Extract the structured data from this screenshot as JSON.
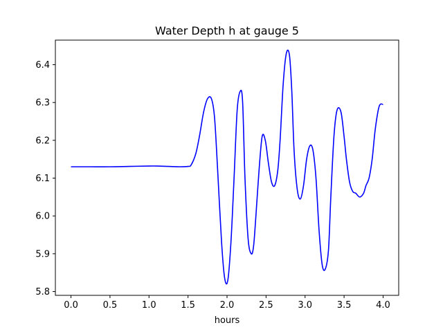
{
  "chart_data": {
    "type": "line",
    "title": "Water Depth h at gauge 5",
    "xlabel": "hours",
    "ylabel": "",
    "xlim": [
      -0.2,
      4.2
    ],
    "ylim": [
      5.79,
      6.465
    ],
    "grid": false,
    "legend": "none",
    "x_ticks": [
      "0.0",
      "0.5",
      "1.0",
      "1.5",
      "2.0",
      "2.5",
      "3.0",
      "3.5",
      "4.0"
    ],
    "y_ticks": [
      "5.8",
      "5.9",
      "6.0",
      "6.1",
      "6.2",
      "6.3",
      "6.4"
    ],
    "series": [
      {
        "color": "#0000ff",
        "x": [
          0.0,
          0.25,
          0.5,
          0.75,
          1.0,
          1.1,
          1.25,
          1.4,
          1.5,
          1.54,
          1.6,
          1.65,
          1.7,
          1.75,
          1.8,
          1.84,
          1.88,
          1.93,
          1.97,
          2.01,
          2.05,
          2.09,
          2.13,
          2.17,
          2.2,
          2.23,
          2.27,
          2.31,
          2.34,
          2.37,
          2.41,
          2.45,
          2.49,
          2.53,
          2.57,
          2.61,
          2.65,
          2.68,
          2.72,
          2.76,
          2.8,
          2.83,
          2.86,
          2.9,
          2.94,
          2.98,
          3.02,
          3.06,
          3.1,
          3.14,
          3.18,
          3.22,
          3.26,
          3.3,
          3.33,
          3.37,
          3.41,
          3.46,
          3.5,
          3.53,
          3.57,
          3.61,
          3.65,
          3.7,
          3.75,
          3.78,
          3.82,
          3.86,
          3.9,
          3.95,
          4.0
        ],
        "y": [
          6.13,
          6.13,
          6.13,
          6.131,
          6.132,
          6.132,
          6.131,
          6.13,
          6.131,
          6.135,
          6.165,
          6.215,
          6.275,
          6.31,
          6.31,
          6.26,
          6.12,
          5.93,
          5.835,
          5.83,
          5.93,
          6.1,
          6.28,
          6.33,
          6.3,
          6.1,
          5.94,
          5.9,
          5.92,
          6.0,
          6.12,
          6.21,
          6.2,
          6.14,
          6.09,
          6.08,
          6.12,
          6.2,
          6.35,
          6.43,
          6.425,
          6.33,
          6.17,
          6.07,
          6.045,
          6.08,
          6.15,
          6.185,
          6.175,
          6.1,
          5.96,
          5.87,
          5.86,
          5.91,
          6.05,
          6.21,
          6.28,
          6.275,
          6.21,
          6.15,
          6.09,
          6.065,
          6.06,
          6.05,
          6.06,
          6.08,
          6.1,
          6.15,
          6.23,
          6.29,
          6.295
        ]
      }
    ]
  }
}
